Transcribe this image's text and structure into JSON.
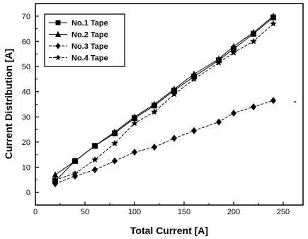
{
  "chart_data": {
    "type": "line",
    "xlabel": "Total Current [A]",
    "ylabel": "Current Distribution [A]",
    "xlim": [
      0,
      270
    ],
    "ylim": [
      -5,
      75
    ],
    "xticks": [
      0,
      50,
      100,
      150,
      200,
      250
    ],
    "yticks": [
      0,
      10,
      20,
      30,
      40,
      50,
      60,
      70
    ],
    "legend_position": "top-left",
    "grid": false,
    "x": [
      20,
      40,
      60,
      80,
      100,
      120,
      140,
      160,
      185,
      200,
      220,
      240
    ],
    "series": [
      {
        "name": "No.1 Tape",
        "marker": "square",
        "dash": "solid",
        "values": [
          4.5,
          12.5,
          18.5,
          23.5,
          29.5,
          34.5,
          40.5,
          46,
          52.5,
          57,
          63,
          69.5
        ]
      },
      {
        "name": "No.2 Tape",
        "marker": "triangle",
        "dash": "solid",
        "values": [
          7,
          12.5,
          18.5,
          24,
          30,
          35,
          41,
          47,
          53,
          58,
          63.5,
          70
        ]
      },
      {
        "name": "No.3 Tape",
        "marker": "diamond",
        "dash": "dashed",
        "values": [
          3.5,
          6.5,
          9,
          12.5,
          16,
          18,
          21.5,
          24.5,
          28,
          31.5,
          34,
          36.5
        ]
      },
      {
        "name": "No.4 Tape",
        "marker": "star",
        "dash": "dashed",
        "values": [
          5,
          7.5,
          13,
          19.5,
          27.5,
          32,
          39,
          45,
          51.5,
          55.5,
          60,
          67
        ]
      }
    ],
    "annotation_point": {
      "x": 262,
      "y": 36
    }
  }
}
